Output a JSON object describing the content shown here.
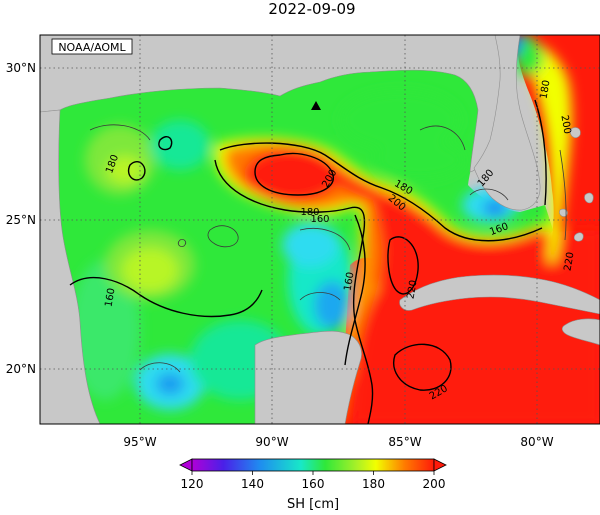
{
  "title": "2022-09-09",
  "credit": "NOAA/AOML",
  "lat_labels": [
    "30°N",
    "25°N",
    "20°N"
  ],
  "lon_labels": [
    "95°W",
    "90°W",
    "85°W",
    "80°W"
  ],
  "contour_labels": [
    "180",
    "180",
    "160",
    "200",
    "180",
    "200",
    "180",
    "160",
    "160",
    "160",
    "220",
    "200",
    "180",
    "220",
    "220"
  ],
  "colorbar": {
    "ticks": [
      "120",
      "140",
      "160",
      "180",
      "200"
    ],
    "label": "SH [cm]",
    "range": [
      120,
      200
    ]
  },
  "colors": {
    "land": "#c8c8c8",
    "c200": "#ff1a0a",
    "c190": "#ff7a00",
    "c180": "#f2ff00",
    "c175": "#b8f528",
    "c170": "#7ee83a",
    "c165": "#2fe83a",
    "c160": "#18e896",
    "c150": "#2fdcf0",
    "c140": "#1f6ee8"
  }
}
